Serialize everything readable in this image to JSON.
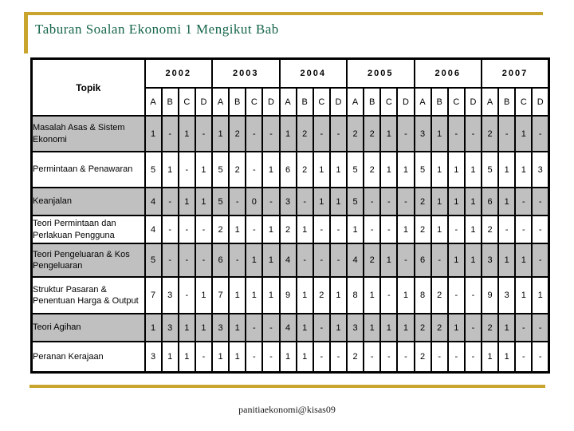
{
  "slide": {
    "title": "Taburan Soalan Ekonomi 1 Mengikut Bab",
    "footer": "panitiaekonomi@kisas09",
    "accent_color": "#C9A42F",
    "title_color": "#17664B",
    "shaded_row_color": "#C0C0C0"
  },
  "table": {
    "topic_header": "Topik",
    "years": [
      "2002",
      "2003",
      "2004",
      "2005",
      "2006",
      "2007"
    ],
    "subcolumns": [
      "A",
      "B",
      "C",
      "D"
    ],
    "rows": [
      {
        "topic": "Masalah Asas & Sistem Ekonomi",
        "values": [
          "1",
          "-",
          "1",
          "-",
          "1",
          "2",
          "-",
          "-",
          "1",
          "2",
          "-",
          "-",
          "2",
          "2",
          "1",
          "-",
          "3",
          "1",
          "-",
          "-",
          "2",
          "-",
          "1",
          "-"
        ]
      },
      {
        "topic": "Permintaan & Penawaran",
        "values": [
          "5",
          "1",
          "-",
          "1",
          "5",
          "2",
          "-",
          "1",
          "6",
          "2",
          "1",
          "1",
          "5",
          "2",
          "1",
          "1",
          "5",
          "1",
          "1",
          "1",
          "5",
          "1",
          "1",
          "3"
        ]
      },
      {
        "topic": "Keanjalan",
        "values": [
          "4",
          "-",
          "1",
          "1",
          "5",
          "-",
          "0",
          "-",
          "3",
          "-",
          "1",
          "1",
          "5",
          "-",
          "-",
          "-",
          "2",
          "1",
          "1",
          "1",
          "6",
          "1",
          "-",
          "-"
        ]
      },
      {
        "topic": "Teori Permintaan dan Perlakuan Pengguna",
        "values": [
          "4",
          "-",
          "-",
          "-",
          "2",
          "1",
          "-",
          "1",
          "2",
          "1",
          "-",
          "-",
          "1",
          "-",
          "-",
          "1",
          "2",
          "1",
          "-",
          "1",
          "2",
          "-",
          "-",
          "-"
        ]
      },
      {
        "topic": "Teori Pengeluaran & Kos Pengeluaran",
        "values": [
          "5",
          "-",
          "-",
          "-",
          "6",
          "-",
          "1",
          "1",
          "4",
          "-",
          "-",
          "-",
          "4",
          "2",
          "1",
          "-",
          "6",
          "-",
          "1",
          "1",
          "3",
          "1",
          "1",
          "-"
        ]
      },
      {
        "topic": "Struktur Pasaran & Penentuan Harga & Output",
        "values": [
          "7",
          "3",
          "-",
          "1",
          "7",
          "1",
          "1",
          "1",
          "9",
          "1",
          "2",
          "1",
          "8",
          "1",
          "-",
          "1",
          "8",
          "2",
          "-",
          "-",
          "9",
          "3",
          "1",
          "1"
        ]
      },
      {
        "topic": "Teori Agihan",
        "values": [
          "1",
          "3",
          "1",
          "1",
          "3",
          "1",
          "-",
          "-",
          "4",
          "1",
          "-",
          "1",
          "3",
          "1",
          "1",
          "1",
          "2",
          "2",
          "1",
          "-",
          "2",
          "1",
          "-",
          "-"
        ]
      },
      {
        "topic": "Peranan Kerajaan",
        "values": [
          "3",
          "1",
          "1",
          "-",
          "1",
          "1",
          "-",
          "-",
          "1",
          "1",
          "-",
          "-",
          "2",
          "-",
          "-",
          "-",
          "2",
          "-",
          "-",
          "-",
          "1",
          "1",
          "-",
          "-"
        ]
      }
    ]
  }
}
